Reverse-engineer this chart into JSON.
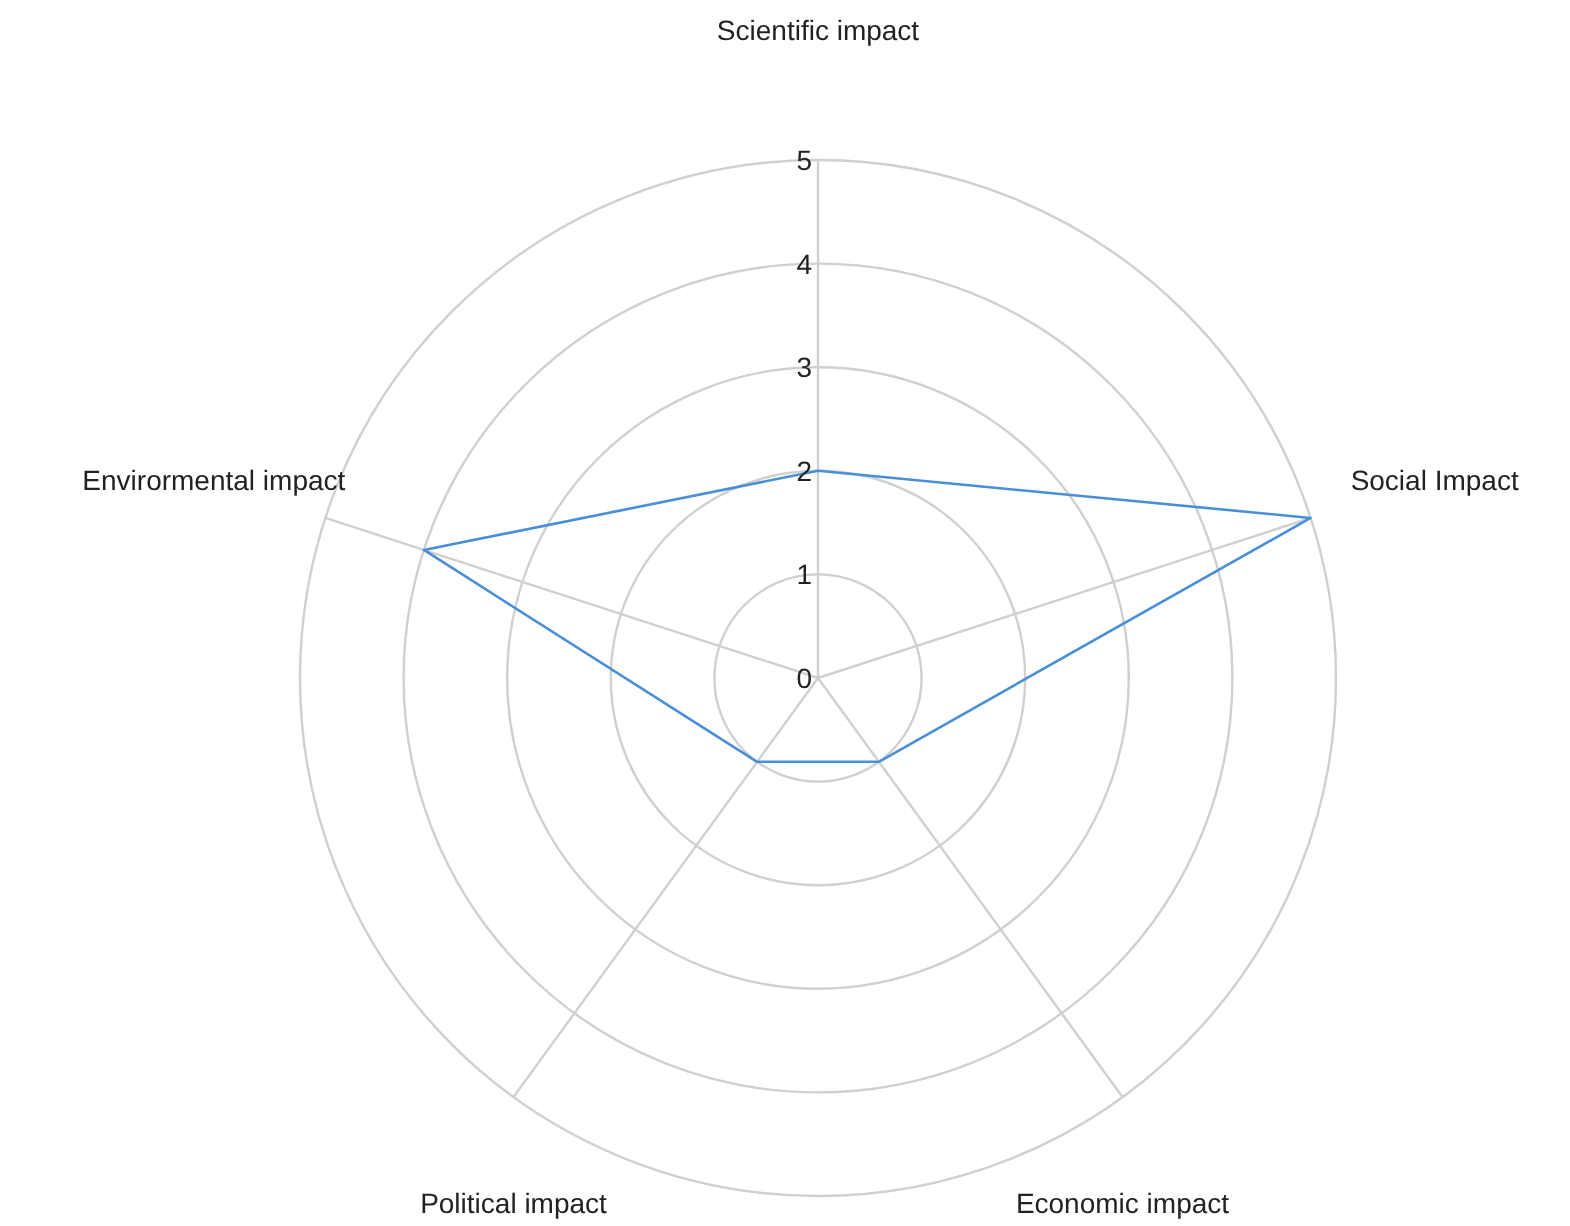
{
  "chart_data": {
    "type": "radar",
    "categories": [
      "Scientific impact",
      "Social Impact",
      "Economic impact",
      "Political impact",
      "Envirormental impact"
    ],
    "series": [
      {
        "color": "#4a8fd6",
        "values": [
          2,
          5,
          1,
          1,
          4
        ]
      }
    ],
    "ylim": [
      0,
      5
    ],
    "yticks": [
      0,
      1,
      2,
      3,
      4,
      5
    ],
    "grid": true,
    "marker": "none"
  }
}
